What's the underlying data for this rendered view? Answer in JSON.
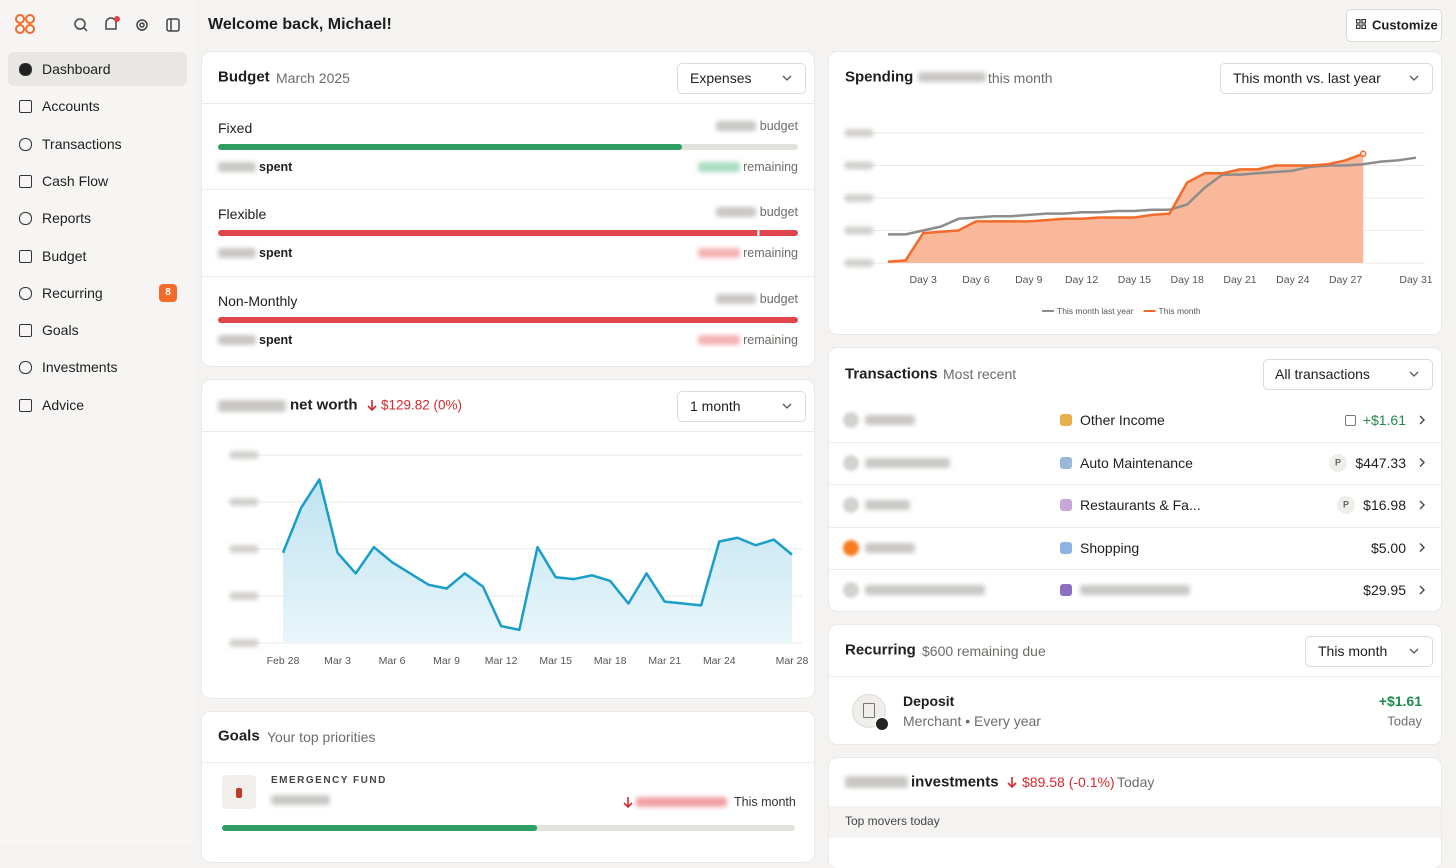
{
  "sidebar": {
    "nav": [
      "Dashboard",
      "Accounts",
      "Transactions",
      "Cash Flow",
      "Reports",
      "Budget",
      "Recurring",
      "Goals",
      "Investments",
      "Advice"
    ],
    "active": 0,
    "recurring_badge": "8"
  },
  "header": {
    "title": "Welcome back, Michael!",
    "customize": "Customize"
  },
  "budget": {
    "title": "Budget",
    "subtitle": "March 2025",
    "dropdown": "Expenses",
    "budget_label": "budget",
    "spent_label": "spent",
    "remaining_label": "remaining",
    "rows": [
      {
        "name": "Fixed",
        "progress": 80,
        "color": "#2e9e63"
      },
      {
        "name": "Flexible",
        "progress": 100,
        "budget_marker": 93,
        "color": "#e0444c"
      },
      {
        "name": "Non-Monthly",
        "progress": 100,
        "color": "#e0444c"
      }
    ]
  },
  "net_worth": {
    "label": "net worth",
    "change": "$129.82 (0%)",
    "dropdown": "1 month",
    "chart": {
      "type": "area",
      "color": "#1a9ec9",
      "categories": [
        "Feb 28",
        null,
        null,
        "Mar 3",
        null,
        null,
        "Mar 6",
        null,
        null,
        "Mar 9",
        null,
        null,
        "Mar 12",
        null,
        null,
        "Mar 15",
        null,
        null,
        "Mar 18",
        null,
        null,
        "Mar 21",
        null,
        null,
        "Mar 24",
        null,
        null,
        null,
        "Mar 28"
      ],
      "values": [
        48,
        72,
        87,
        48,
        37,
        51,
        43,
        37,
        31,
        29,
        37,
        30,
        9,
        7,
        51,
        35,
        34,
        36,
        33,
        21,
        37,
        22,
        21,
        20,
        54,
        56,
        52,
        55,
        47
      ],
      "ylim": [
        0,
        100
      ],
      "gridlines": [
        0,
        25,
        50,
        75,
        100
      ]
    }
  },
  "goals": {
    "title": "Goals",
    "subtitle": "Your top priorities",
    "goal": "EMERGENCY FUND",
    "period": "This month",
    "progress": 55,
    "color": "#2e9e63"
  },
  "spending": {
    "title": "Spending",
    "subtitle": "this month",
    "dropdown": "This month vs. last year",
    "chart": {
      "type": "line",
      "categories": [
        null,
        null,
        "Day 3",
        null,
        null,
        "Day 6",
        null,
        null,
        "Day 9",
        null,
        null,
        "Day 12",
        null,
        null,
        "Day 15",
        null,
        null,
        "Day 18",
        null,
        null,
        "Day 21",
        null,
        null,
        "Day 24",
        null,
        null,
        "Day 27",
        null,
        null,
        null,
        "Day 31"
      ],
      "series": [
        {
          "name": "This month last year",
          "color": "#8c8c8c",
          "values": [
            22,
            22,
            25,
            28,
            34,
            35,
            36,
            36,
            37,
            38,
            38,
            39,
            39,
            40,
            40,
            41,
            41,
            45,
            58,
            68,
            68,
            69,
            70,
            71,
            74,
            75,
            75,
            76,
            78,
            79,
            81
          ]
        },
        {
          "name": "This month",
          "color": "#f26b2a",
          "values": [
            1,
            2,
            23,
            24,
            25,
            32,
            32,
            32,
            32,
            33,
            34,
            34,
            35,
            35,
            35,
            37,
            38,
            62,
            69,
            69,
            72,
            72,
            75,
            75,
            75,
            76,
            79,
            84,
            null,
            null,
            null
          ]
        }
      ],
      "ylim": [
        0,
        100
      ],
      "gridlines": [
        0,
        25,
        50,
        75,
        100
      ],
      "legend": "bottom"
    }
  },
  "transactions": {
    "title": "Transactions",
    "subtitle": "Most recent",
    "dropdown": "All transactions",
    "rows": [
      {
        "category": "Other Income",
        "amount": "+$1.61"
      },
      {
        "category": "Auto Maintenance",
        "badge": "P",
        "amount": "$447.33"
      },
      {
        "category": "Restaurants & Fa...",
        "badge": "P",
        "amount": "$16.98"
      },
      {
        "category": "Shopping",
        "amount": "$5.00"
      },
      {
        "amount": "$29.95"
      }
    ]
  },
  "recurring": {
    "title": "Recurring",
    "subtitle": "$600 remaining due",
    "dropdown": "This month",
    "item": "Deposit",
    "detail": "Merchant • Every year",
    "amount": "+$1.61",
    "when": "Today"
  },
  "investments": {
    "label": "investments",
    "change": "$89.58 (-0.1%)",
    "when": "Today",
    "section": "Top movers today"
  }
}
